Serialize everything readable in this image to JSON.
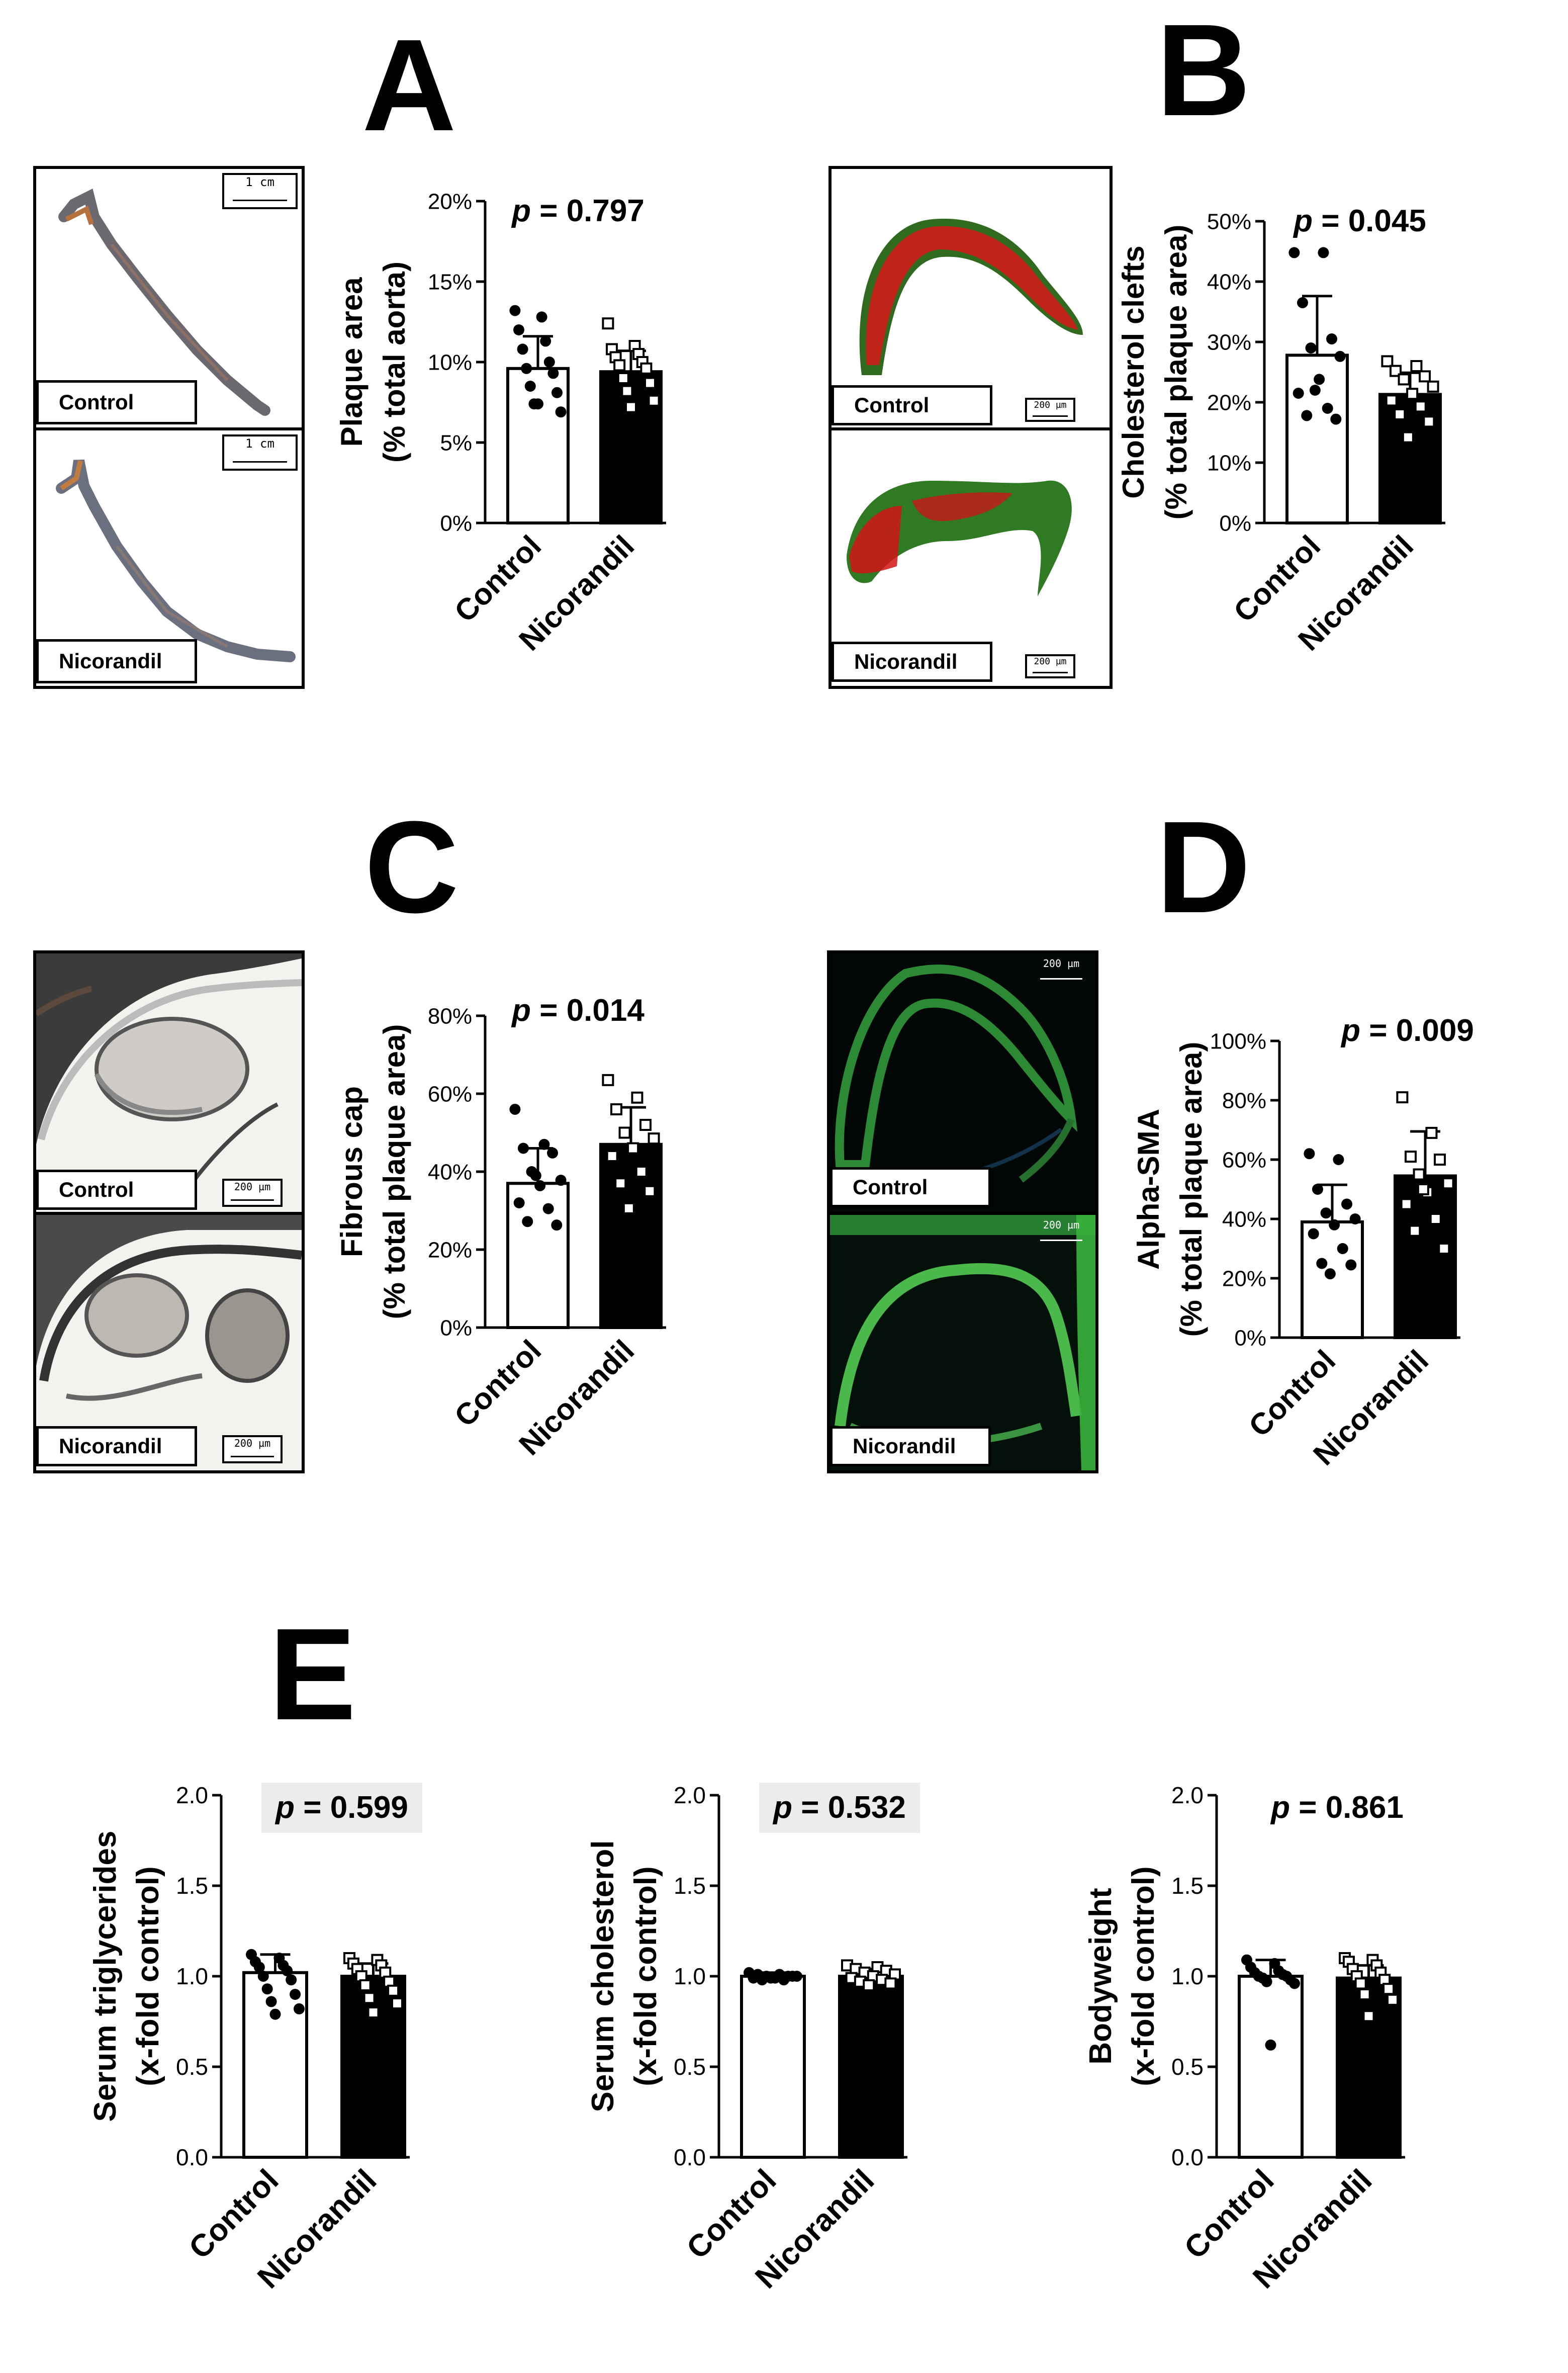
{
  "panels": {
    "A": {
      "letter": "A"
    },
    "B": {
      "letter": "B"
    },
    "C": {
      "letter": "C"
    },
    "D": {
      "letter": "D"
    },
    "E": {
      "letter": "E"
    }
  },
  "micrographs": {
    "A": {
      "top_label": "Control",
      "bottom_label": "Nicorandil",
      "scale": "1 cm"
    },
    "B": {
      "top_label": "Control",
      "bottom_label": "Nicorandil",
      "scale": "200 µm"
    },
    "C": {
      "top_label": "Control",
      "bottom_label": "Nicorandil",
      "scale": "200 µm"
    },
    "D": {
      "top_label": "Control",
      "bottom_label": "Nicorandil",
      "scale": "200 µm"
    }
  },
  "colors": {
    "control_bar": "#ffffff",
    "nicorandil_bar": "#000000",
    "pvalue_highlight": "#ececec"
  },
  "chart_data": [
    {
      "id": "A",
      "type": "bar",
      "categories": [
        "Control",
        "Nicorandil"
      ],
      "ylabel_line1": "Plaque area",
      "ylabel_line2": "(% total aorta)",
      "ylim": [
        0,
        20
      ],
      "yticks": [
        0,
        5,
        10,
        15,
        20
      ],
      "ytick_labels": [
        "0%",
        "5%",
        "10%",
        "15%",
        "20%"
      ],
      "values": [
        9.6,
        9.4
      ],
      "errors": [
        2.0,
        1.3
      ],
      "points": [
        [
          13.2,
          12.8,
          12.0,
          11.3,
          10.8,
          10.0,
          9.6,
          9.3,
          8.5,
          8.1,
          7.4,
          6.9,
          7.4
        ],
        [
          12.4,
          11.0,
          10.8,
          10.5,
          10.3,
          10.0,
          9.8,
          9.6,
          9.0,
          8.7,
          8.2,
          7.6,
          7.2
        ]
      ],
      "pvalue_label": "p",
      "pvalue": "= 0.797",
      "p_highlight": false
    },
    {
      "id": "B",
      "type": "bar",
      "categories": [
        "Control",
        "Nicorandil"
      ],
      "ylabel_line1": "Cholesterol clefts",
      "ylabel_line2": "(% total plaque area)",
      "ylim": [
        0,
        50
      ],
      "yticks": [
        0,
        10,
        20,
        30,
        40,
        50
      ],
      "ytick_labels": [
        "0%",
        "10%",
        "20%",
        "30%",
        "40%",
        "50%"
      ],
      "values": [
        27.8,
        21.3
      ],
      "errors": [
        9.8,
        3.6
      ],
      "points": [
        [
          44.8,
          44.8,
          36.5,
          30.5,
          29.0,
          27.6,
          23.8,
          21.5,
          19.0,
          17.8,
          17.2,
          22.0
        ],
        [
          26.8,
          26.0,
          25.2,
          24.3,
          23.8,
          22.6,
          21.4,
          20.3,
          19.3,
          18.0,
          16.8,
          14.2
        ]
      ],
      "pvalue_label": "p",
      "pvalue": "= 0.045",
      "p_highlight": false
    },
    {
      "id": "C",
      "type": "bar",
      "categories": [
        "Control",
        "Nicorandil"
      ],
      "ylabel_line1": "Fibrous cap",
      "ylabel_line2": "(% total plaque area)",
      "ylim": [
        0,
        80
      ],
      "yticks": [
        0,
        20,
        40,
        60,
        80
      ],
      "ytick_labels": [
        "0%",
        "20%",
        "40%",
        "60%",
        "80%"
      ],
      "values": [
        37.0,
        47.0
      ],
      "errors": [
        9.0,
        9.5
      ],
      "points": [
        [
          56.0,
          47.0,
          46.0,
          44.8,
          40.0,
          37.8,
          36.4,
          32.0,
          30.5,
          27.2,
          26.3,
          39.0
        ],
        [
          63.5,
          59.0,
          56.0,
          52.0,
          50.0,
          48.5,
          46.0,
          44.0,
          40.0,
          37.0,
          35.0,
          30.6
        ]
      ],
      "pvalue_label": "p",
      "pvalue": "= 0.014",
      "p_highlight": false
    },
    {
      "id": "D",
      "type": "bar",
      "categories": [
        "Control",
        "Nicorandil"
      ],
      "ylabel_line1": "Alpha-SMA",
      "ylabel_line2": "(% total plaque area)",
      "ylim": [
        0,
        100
      ],
      "yticks": [
        0,
        20,
        40,
        60,
        80,
        100
      ],
      "ytick_labels": [
        "0%",
        "20%",
        "40%",
        "60%",
        "80%",
        "100%"
      ],
      "values": [
        39.0,
        54.5
      ],
      "errors": [
        12.5,
        15.0
      ],
      "points": [
        [
          62.0,
          60.0,
          50.0,
          45.0,
          42.0,
          40.0,
          38.0,
          35.0,
          30.0,
          25.0,
          24.5,
          21.5
        ],
        [
          81.0,
          69.0,
          61.0,
          60.0,
          55.0,
          52.0,
          49.0,
          45.0,
          40.0,
          36.0,
          30.0,
          50.0
        ]
      ],
      "pvalue_label": "p",
      "pvalue": "= 0.009",
      "p_highlight": false
    },
    {
      "id": "E1",
      "type": "bar",
      "categories": [
        "Control",
        "Nicorandil"
      ],
      "ylabel_line1": "Serum triglycerides",
      "ylabel_line2": "(x-fold control)",
      "ylim": [
        0,
        2
      ],
      "yticks": [
        0,
        0.5,
        1.0,
        1.5,
        2.0
      ],
      "ytick_labels": [
        "0.0",
        "0.5",
        "1.0",
        "1.5",
        "2.0"
      ],
      "values": [
        1.02,
        1.0
      ],
      "errors": [
        0.1,
        0.07
      ],
      "points": [
        [
          1.12,
          1.1,
          1.08,
          1.06,
          1.05,
          1.03,
          1.0,
          0.98,
          0.93,
          0.9,
          0.86,
          0.82,
          0.79
        ],
        [
          1.1,
          1.09,
          1.07,
          1.06,
          1.04,
          1.02,
          1.0,
          0.97,
          0.95,
          0.92,
          0.88,
          0.85,
          0.8
        ]
      ],
      "pvalue_label": "p",
      "pvalue": "= 0.599",
      "p_highlight": true
    },
    {
      "id": "E2",
      "type": "bar",
      "categories": [
        "Control",
        "Nicorandil"
      ],
      "ylabel_line1": "Serum cholesterol",
      "ylabel_line2": "(x-fold control)",
      "ylim": [
        0,
        2
      ],
      "yticks": [
        0,
        0.5,
        1.0,
        1.5,
        2.0
      ],
      "ytick_labels": [
        "0.0",
        "0.5",
        "1.0",
        "1.5",
        "2.0"
      ],
      "values": [
        1.0,
        1.0
      ],
      "errors": [
        0.02,
        0.04
      ],
      "points": [
        [
          1.02,
          1.01,
          1.01,
          1.0,
          1.0,
          1.0,
          0.99,
          0.99,
          0.98,
          0.98,
          1.0,
          0.99
        ],
        [
          1.06,
          1.05,
          1.04,
          1.03,
          1.02,
          1.01,
          1.0,
          0.99,
          0.98,
          0.97,
          0.96,
          0.95
        ]
      ],
      "pvalue_label": "p",
      "pvalue": "= 0.532",
      "p_highlight": true
    },
    {
      "id": "E3",
      "type": "bar",
      "categories": [
        "Control",
        "Nicorandil"
      ],
      "ylabel_line1": "Bodyweight",
      "ylabel_line2": "(x-fold control)",
      "ylim": [
        0,
        2
      ],
      "yticks": [
        0,
        0.5,
        1.0,
        1.5,
        2.0
      ],
      "ytick_labels": [
        "0.0",
        "0.5",
        "1.0",
        "1.5",
        "2.0"
      ],
      "values": [
        1.0,
        0.99
      ],
      "errors": [
        0.09,
        0.07
      ],
      "points": [
        [
          1.09,
          1.07,
          1.05,
          1.03,
          1.02,
          1.01,
          1.0,
          1.0,
          0.99,
          0.98,
          0.97,
          0.96,
          0.62
        ],
        [
          1.1,
          1.09,
          1.08,
          1.06,
          1.04,
          1.02,
          1.0,
          0.98,
          0.96,
          0.93,
          0.9,
          0.87,
          0.78
        ]
      ],
      "pvalue_label": "p",
      "pvalue": "= 0.861",
      "p_highlight": false
    }
  ]
}
